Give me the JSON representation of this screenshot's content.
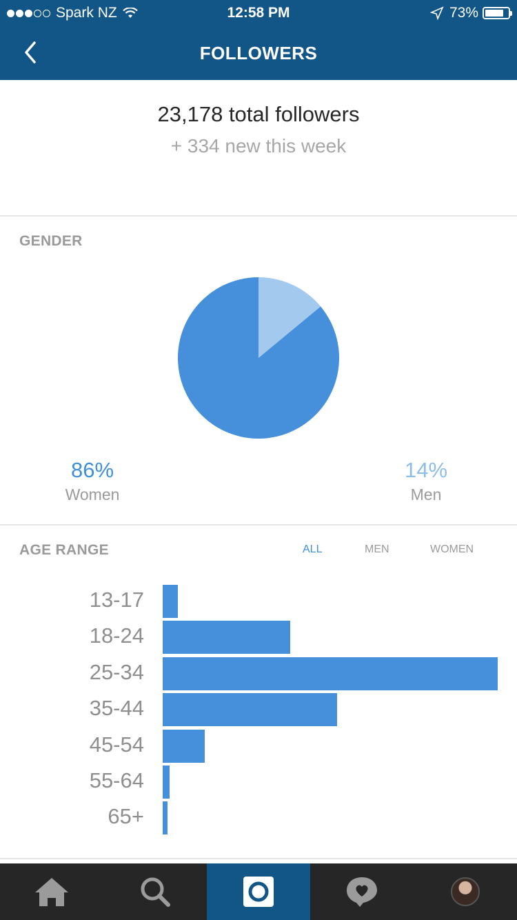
{
  "status_bar": {
    "carrier": "Spark NZ",
    "time": "12:58 PM",
    "battery": "73%"
  },
  "nav": {
    "title": "FOLLOWERS"
  },
  "summary": {
    "total": "23,178 total followers",
    "new_week": "+ 334 new this week"
  },
  "gender": {
    "label": "GENDER",
    "women_pct": "86%",
    "women_label": "Women",
    "men_pct": "14%",
    "men_label": "Men"
  },
  "age_range": {
    "label": "AGE RANGE",
    "tabs": [
      "ALL",
      "MEN",
      "WOMEN"
    ],
    "active_tab": "ALL"
  },
  "chart_data": [
    {
      "type": "pie",
      "categories": [
        "Women",
        "Men"
      ],
      "values": [
        86,
        14
      ],
      "colors": [
        "#4690db",
        "#a4c9ee"
      ]
    },
    {
      "type": "bar",
      "orientation": "horizontal",
      "categories": [
        "13-17",
        "18-24",
        "25-34",
        "35-44",
        "45-54",
        "55-64",
        "65+"
      ],
      "values": [
        4.5,
        38,
        100,
        52,
        12.5,
        2,
        1.5
      ],
      "color": "#4690db"
    }
  ],
  "tabbar": {
    "items": [
      "home-icon",
      "search-icon",
      "camera-icon",
      "activity-icon",
      "profile-avatar"
    ]
  },
  "colors": {
    "brand": "#125688",
    "accent": "#3f8fdc",
    "bar": "#4690db",
    "pie_light": "#a4c9ee",
    "men_text": "#8dbde8"
  }
}
